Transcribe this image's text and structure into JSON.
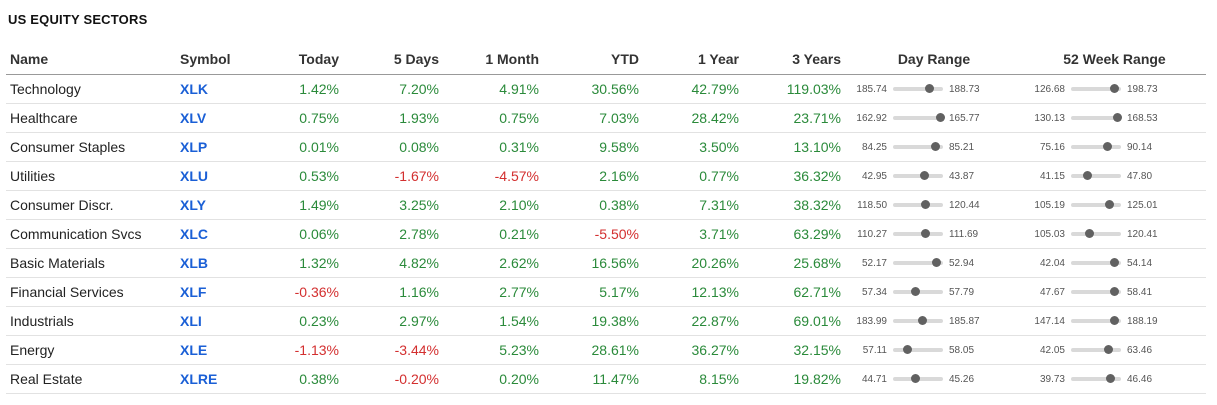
{
  "title": "US EQUITY SECTORS",
  "columns": [
    "Name",
    "Symbol",
    "Today",
    "5 Days",
    "1 Month",
    "YTD",
    "1 Year",
    "3 Years",
    "Day Range",
    "52 Week Range"
  ],
  "colors": {
    "positive": "#2a8a3a",
    "negative": "#d32f2f",
    "symbol": "#1a5fd6"
  },
  "rows": [
    {
      "name": "Technology",
      "symbol": "XLK",
      "today": "1.42%",
      "d5": "7.20%",
      "m1": "4.91%",
      "ytd": "30.56%",
      "y1": "42.79%",
      "y3": "119.03%",
      "day_lo": "185.74",
      "day_hi": "188.73",
      "day_pos": 0.72,
      "wk_lo": "126.68",
      "wk_hi": "198.73",
      "wk_pos": 0.85
    },
    {
      "name": "Healthcare",
      "symbol": "XLV",
      "today": "0.75%",
      "d5": "1.93%",
      "m1": "0.75%",
      "ytd": "7.03%",
      "y1": "28.42%",
      "y3": "23.71%",
      "day_lo": "162.92",
      "day_hi": "165.77",
      "day_pos": 0.93,
      "wk_lo": "130.13",
      "wk_hi": "168.53",
      "wk_pos": 0.92
    },
    {
      "name": "Consumer Staples",
      "symbol": "XLP",
      "today": "0.01%",
      "d5": "0.08%",
      "m1": "0.31%",
      "ytd": "9.58%",
      "y1": "3.50%",
      "y3": "13.10%",
      "day_lo": "84.25",
      "day_hi": "85.21",
      "day_pos": 0.84,
      "wk_lo": "75.16",
      "wk_hi": "90.14",
      "wk_pos": 0.72
    },
    {
      "name": "Utilities",
      "symbol": "XLU",
      "today": "0.53%",
      "d5": "-1.67%",
      "m1": "-4.57%",
      "ytd": "2.16%",
      "y1": "0.77%",
      "y3": "36.32%",
      "day_lo": "42.95",
      "day_hi": "43.87",
      "day_pos": 0.62,
      "wk_lo": "41.15",
      "wk_hi": "47.80",
      "wk_pos": 0.31
    },
    {
      "name": "Consumer Discr.",
      "symbol": "XLY",
      "today": "1.49%",
      "d5": "3.25%",
      "m1": "2.10%",
      "ytd": "0.38%",
      "y1": "7.31%",
      "y3": "38.32%",
      "day_lo": "118.50",
      "day_hi": "120.44",
      "day_pos": 0.63,
      "wk_lo": "105.19",
      "wk_hi": "125.01",
      "wk_pos": 0.75
    },
    {
      "name": "Communication Svcs",
      "symbol": "XLC",
      "today": "0.06%",
      "d5": "2.78%",
      "m1": "0.21%",
      "ytd": "-5.50%",
      "y1": "3.71%",
      "y3": "63.29%",
      "day_lo": "110.27",
      "day_hi": "111.69",
      "day_pos": 0.64,
      "wk_lo": "105.03",
      "wk_hi": "120.41",
      "wk_pos": 0.35
    },
    {
      "name": "Basic Materials",
      "symbol": "XLB",
      "today": "1.32%",
      "d5": "4.82%",
      "m1": "2.62%",
      "ytd": "16.56%",
      "y1": "20.26%",
      "y3": "25.68%",
      "day_lo": "52.17",
      "day_hi": "52.94",
      "day_pos": 0.85,
      "wk_lo": "42.04",
      "wk_hi": "54.14",
      "wk_pos": 0.86
    },
    {
      "name": "Financial Services",
      "symbol": "XLF",
      "today": "-0.36%",
      "d5": "1.16%",
      "m1": "2.77%",
      "ytd": "5.17%",
      "y1": "12.13%",
      "y3": "62.71%",
      "day_lo": "57.34",
      "day_hi": "57.79",
      "day_pos": 0.44,
      "wk_lo": "47.67",
      "wk_hi": "58.41",
      "wk_pos": 0.86
    },
    {
      "name": "Industrials",
      "symbol": "XLI",
      "today": "0.23%",
      "d5": "2.97%",
      "m1": "1.54%",
      "ytd": "19.38%",
      "y1": "22.87%",
      "y3": "69.01%",
      "day_lo": "183.99",
      "day_hi": "185.87",
      "day_pos": 0.58,
      "wk_lo": "147.14",
      "wk_hi": "188.19",
      "wk_pos": 0.86
    },
    {
      "name": "Energy",
      "symbol": "XLE",
      "today": "-1.13%",
      "d5": "-3.44%",
      "m1": "5.23%",
      "ytd": "28.61%",
      "y1": "36.27%",
      "y3": "32.15%",
      "day_lo": "57.11",
      "day_hi": "58.05",
      "day_pos": 0.28,
      "wk_lo": "42.05",
      "wk_hi": "63.46",
      "wk_pos": 0.74
    },
    {
      "name": "Real Estate",
      "symbol": "XLRE",
      "today": "0.38%",
      "d5": "-0.20%",
      "m1": "0.20%",
      "ytd": "11.47%",
      "y1": "8.15%",
      "y3": "19.82%",
      "day_lo": "44.71",
      "day_hi": "45.26",
      "day_pos": 0.44,
      "wk_lo": "39.73",
      "wk_hi": "46.46",
      "wk_pos": 0.78
    }
  ]
}
